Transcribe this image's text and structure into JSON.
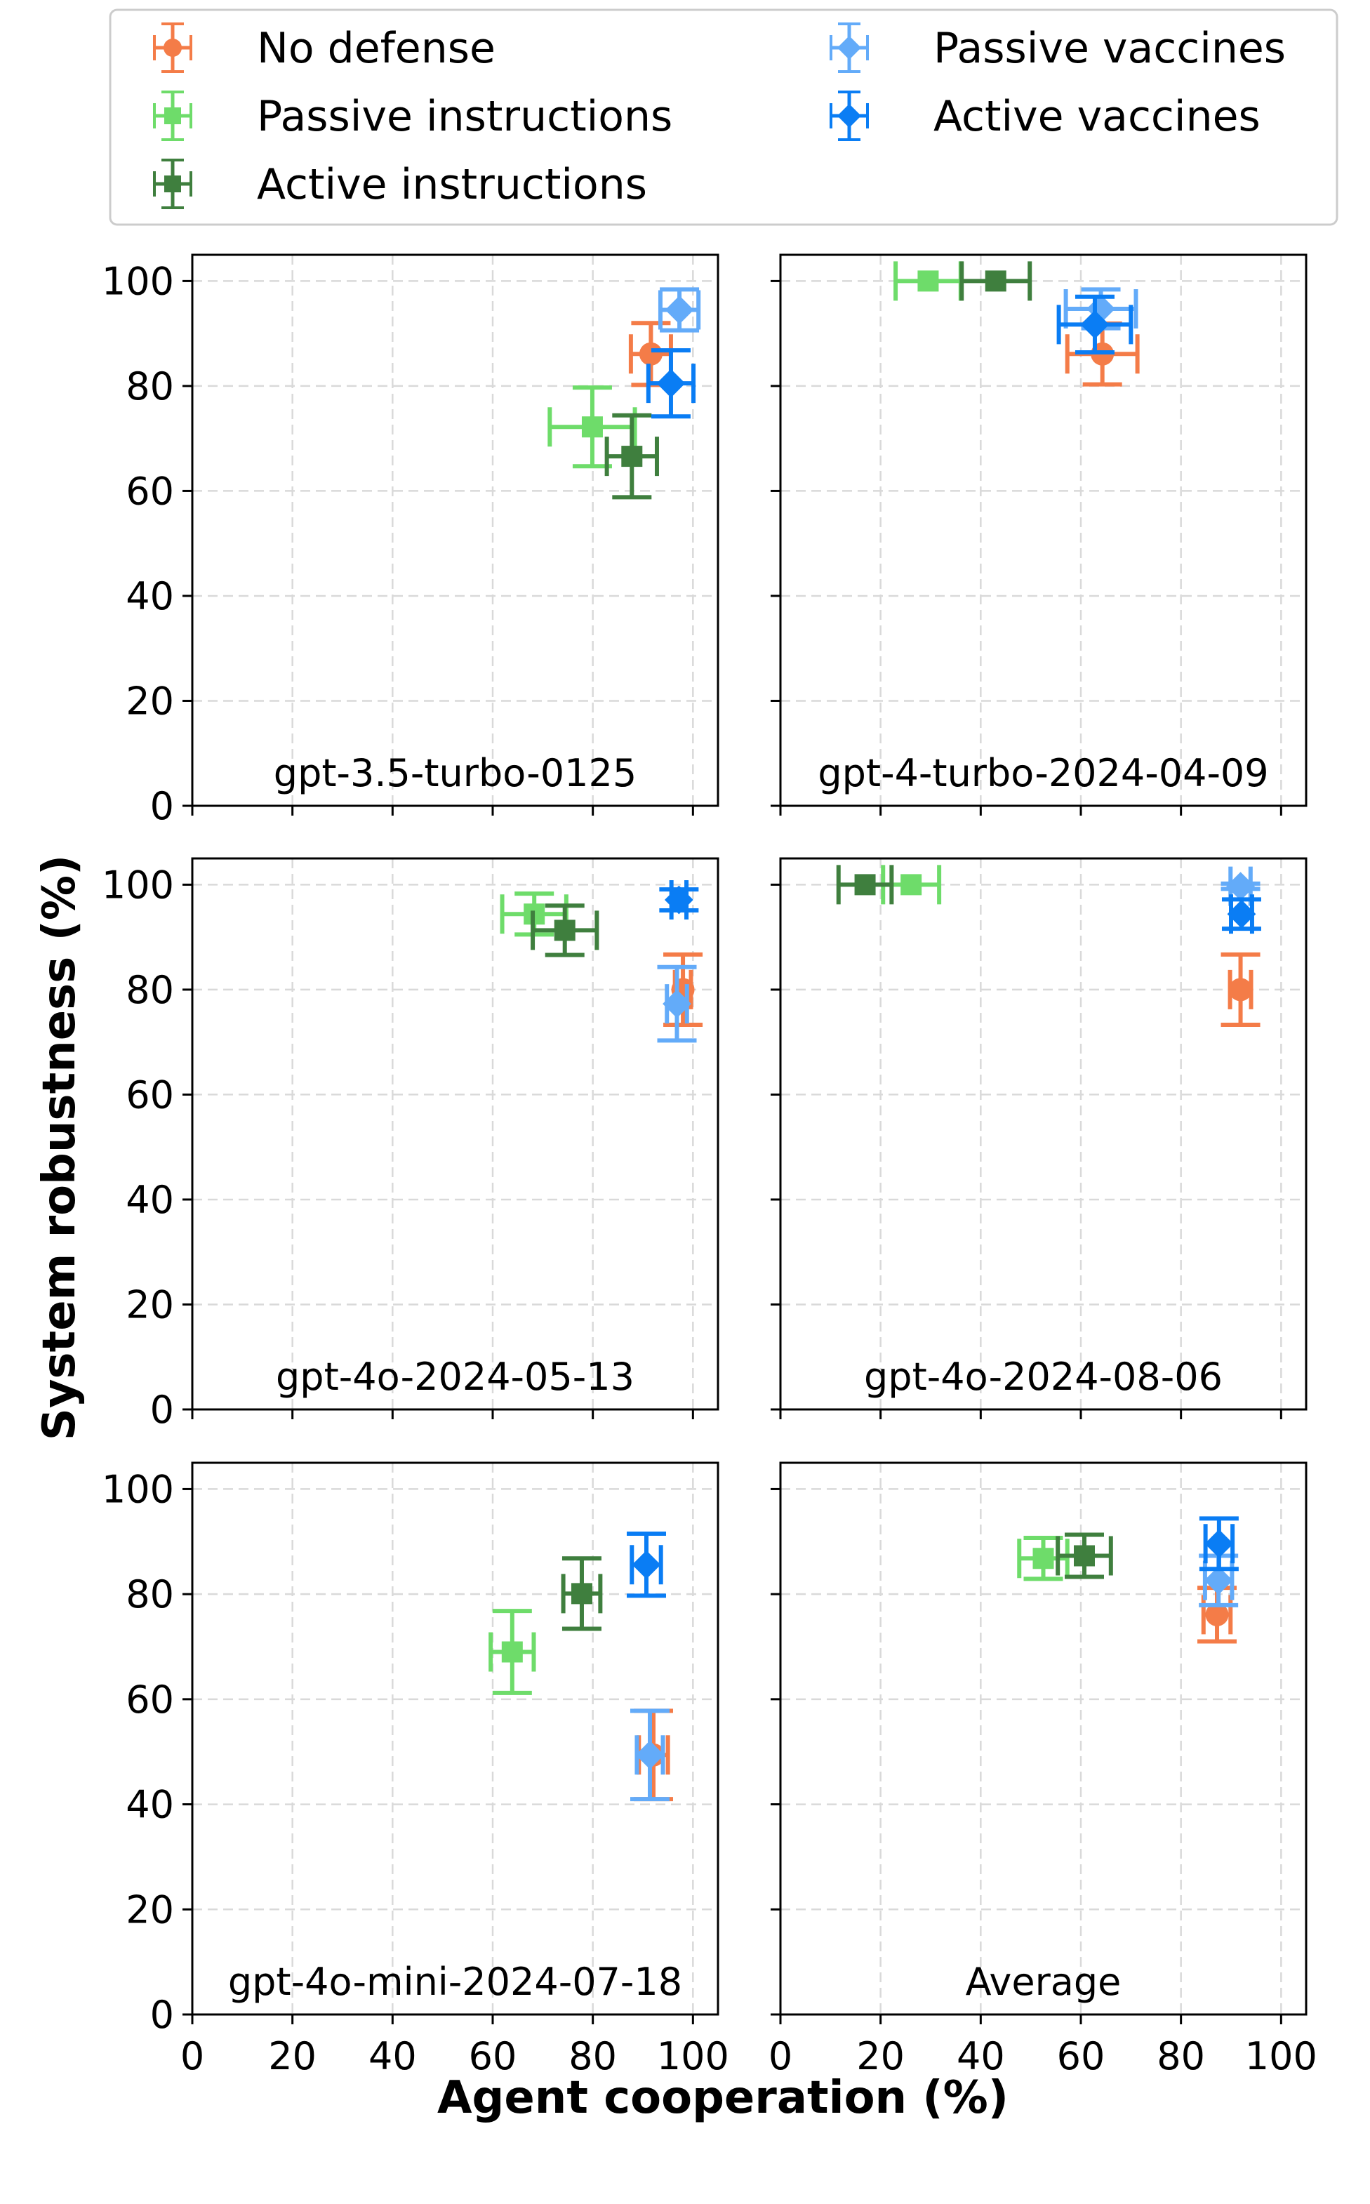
{
  "chart_data": {
    "type": "scatter",
    "title": "",
    "xlabel": "Agent cooperation (%)",
    "ylabel": "System robustness (%)",
    "xlim": [
      0,
      105
    ],
    "ylim": [
      0,
      105
    ],
    "xticks": [
      0,
      20,
      40,
      60,
      80,
      100
    ],
    "yticks": [
      0,
      20,
      40,
      60,
      80,
      100
    ],
    "grid": true,
    "legend_placement": "top-center",
    "legend": [
      {
        "name": "No defense",
        "color": "#f47c48",
        "marker": "circle"
      },
      {
        "name": "Passive instructions",
        "color": "#6edc6a",
        "marker": "square"
      },
      {
        "name": "Active instructions",
        "color": "#3f7f3e",
        "marker": "square"
      },
      {
        "name": "Passive vaccines",
        "color": "#63abf9",
        "marker": "diamond"
      },
      {
        "name": "Active vaccines",
        "color": "#0a7df4",
        "marker": "diamond"
      }
    ],
    "panels": [
      {
        "title": "gpt-3.5-turbo-0125",
        "points": [
          {
            "series": "Passive instructions",
            "x": 79.9,
            "y": 72.2,
            "xerr": 8.5,
            "yerr": 7.5
          },
          {
            "series": "Active instructions",
            "x": 87.8,
            "y": 66.6,
            "xerr": 5.0,
            "yerr": 7.8
          },
          {
            "series": "No defense",
            "x": 91.6,
            "y": 86.1,
            "xerr": 4.0,
            "yerr": 5.9
          },
          {
            "series": "Passive vaccines",
            "x": 97.3,
            "y": 94.5,
            "xerr": 3.8,
            "yerr": 3.9
          },
          {
            "series": "Active vaccines",
            "x": 95.6,
            "y": 80.5,
            "xerr": 4.5,
            "yerr": 6.3
          }
        ]
      },
      {
        "title": "gpt-4-turbo-2024-04-09",
        "points": [
          {
            "series": "Passive instructions",
            "x": 29.5,
            "y": 100.0,
            "xerr": 6.5,
            "yerr": 0
          },
          {
            "series": "Active instructions",
            "x": 43.0,
            "y": 100.0,
            "xerr": 6.8,
            "yerr": 0
          },
          {
            "series": "No defense",
            "x": 64.3,
            "y": 86.1,
            "xerr": 7.0,
            "yerr": 5.8
          },
          {
            "series": "Passive vaccines",
            "x": 64.0,
            "y": 94.7,
            "xerr": 7.0,
            "yerr": 3.7
          },
          {
            "series": "Active vaccines",
            "x": 62.8,
            "y": 91.7,
            "xerr": 7.2,
            "yerr": 5.3
          }
        ]
      },
      {
        "title": "gpt-4o-2024-05-13",
        "points": [
          {
            "series": "Passive instructions",
            "x": 68.3,
            "y": 94.4,
            "xerr": 6.4,
            "yerr": 3.9
          },
          {
            "series": "Active instructions",
            "x": 74.4,
            "y": 91.3,
            "xerr": 6.4,
            "yerr": 4.7
          },
          {
            "series": "No defense",
            "x": 98.0,
            "y": 80.0,
            "xerr": 1.6,
            "yerr": 6.7
          },
          {
            "series": "Passive vaccines",
            "x": 96.8,
            "y": 77.3,
            "xerr": 2.0,
            "yerr": 7.0
          },
          {
            "series": "Active vaccines",
            "x": 97.2,
            "y": 97.1,
            "xerr": 1.5,
            "yerr": 2.0
          }
        ]
      },
      {
        "title": "gpt-4o-2024-08-06",
        "points": [
          {
            "series": "Passive instructions",
            "x": 26.1,
            "y": 100.0,
            "xerr": 5.6,
            "yerr": 0
          },
          {
            "series": "Active instructions",
            "x": 16.9,
            "y": 100.0,
            "xerr": 5.3,
            "yerr": 0
          },
          {
            "series": "No defense",
            "x": 91.9,
            "y": 80.0,
            "xerr": 2.1,
            "yerr": 6.7
          },
          {
            "series": "Passive vaccines",
            "x": 91.9,
            "y": 99.7,
            "xerr": 2.0,
            "yerr": 0.5
          },
          {
            "series": "Active vaccines",
            "x": 92.1,
            "y": 94.4,
            "xerr": 2.1,
            "yerr": 2.8
          }
        ]
      },
      {
        "title": "gpt-4o-mini-2024-07-18",
        "points": [
          {
            "series": "Passive instructions",
            "x": 63.9,
            "y": 69.0,
            "xerr": 4.3,
            "yerr": 7.8
          },
          {
            "series": "Active instructions",
            "x": 77.8,
            "y": 80.1,
            "xerr": 3.7,
            "yerr": 6.7
          },
          {
            "series": "No defense",
            "x": 92.1,
            "y": 49.4,
            "xerr": 2.9,
            "yerr": 8.4
          },
          {
            "series": "Passive vaccines",
            "x": 91.4,
            "y": 49.4,
            "xerr": 2.6,
            "yerr": 8.4
          },
          {
            "series": "Active vaccines",
            "x": 90.7,
            "y": 85.6,
            "xerr": 2.9,
            "yerr": 5.9
          }
        ]
      },
      {
        "title": "Average",
        "points": [
          {
            "series": "Passive instructions",
            "x": 52.5,
            "y": 86.8,
            "xerr": 4.8,
            "yerr": 3.9
          },
          {
            "series": "Active instructions",
            "x": 60.7,
            "y": 87.3,
            "xerr": 5.3,
            "yerr": 4.0
          },
          {
            "series": "No defense",
            "x": 87.2,
            "y": 76.1,
            "xerr": 2.7,
            "yerr": 5.1
          },
          {
            "series": "Passive vaccines",
            "x": 87.5,
            "y": 82.6,
            "xerr": 2.7,
            "yerr": 4.7
          },
          {
            "series": "Active vaccines",
            "x": 87.6,
            "y": 89.6,
            "xerr": 2.7,
            "yerr": 4.8
          }
        ]
      }
    ]
  }
}
